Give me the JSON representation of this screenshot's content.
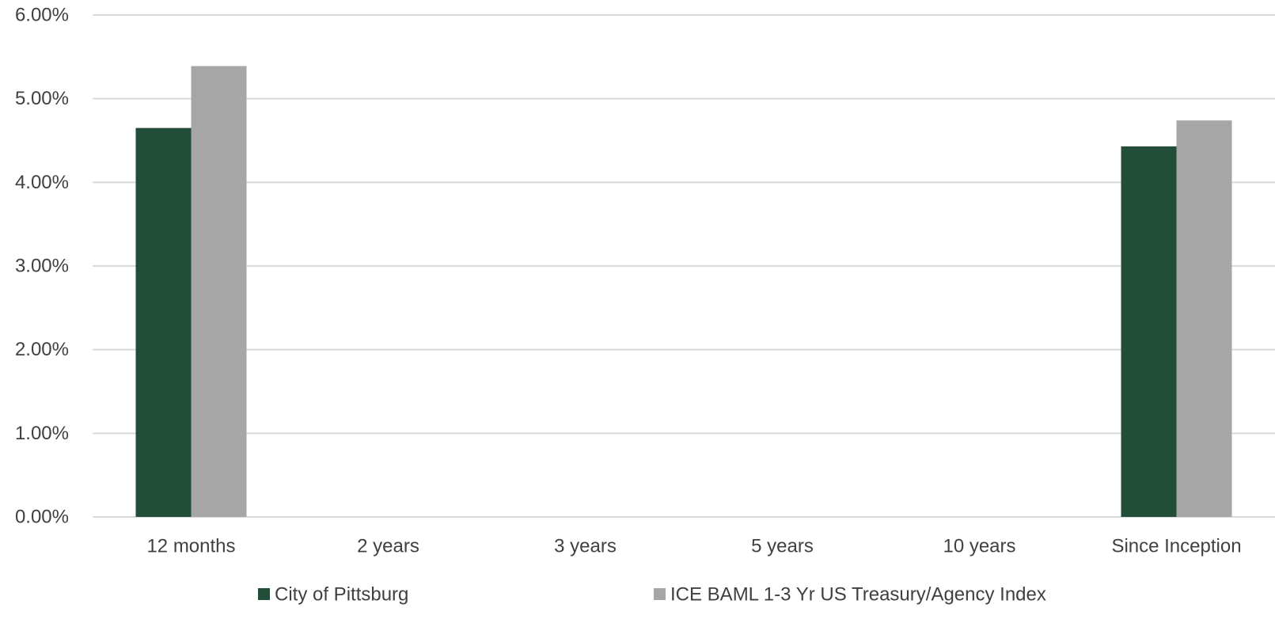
{
  "chart_data": {
    "type": "bar",
    "title": "",
    "xlabel": "",
    "ylabel": "",
    "categories": [
      "12 months",
      "2 years",
      "3 years",
      "5 years",
      "10 years",
      "Since Inception"
    ],
    "series": [
      {
        "name": "City of Pittsburg",
        "color": "#224d38",
        "values": [
          4.65,
          null,
          null,
          null,
          null,
          4.43
        ]
      },
      {
        "name": "ICE BAML 1-3 Yr US Treasury/Agency Index",
        "color": "#a6a6a6",
        "values": [
          5.39,
          null,
          null,
          null,
          null,
          4.74
        ]
      }
    ],
    "ylim": [
      0,
      6
    ],
    "yticks": [
      0,
      1,
      2,
      3,
      4,
      5,
      6
    ],
    "ytick_labels": [
      "0.00%",
      "1.00%",
      "2.00%",
      "3.00%",
      "4.00%",
      "5.00%",
      "6.00%"
    ],
    "grid": true,
    "legend_position": "bottom"
  }
}
